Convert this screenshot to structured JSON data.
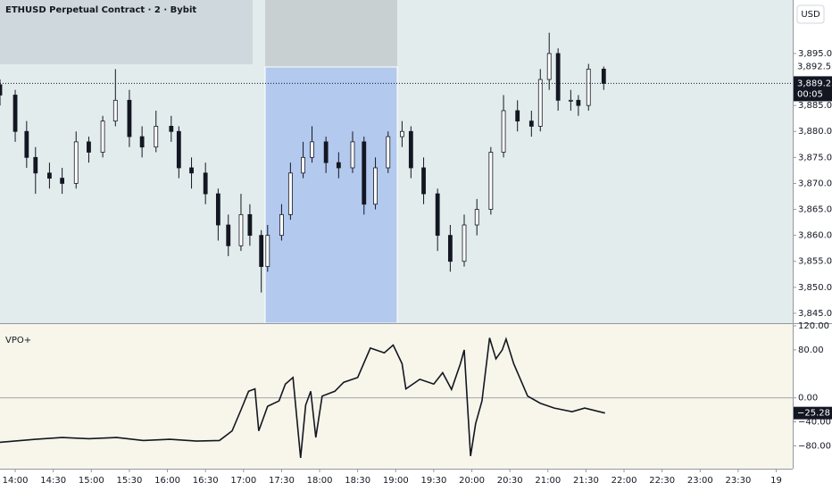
{
  "chart_data": [
    {
      "type": "candlestick",
      "title": "ETHUSD Perpetual Contract · 2 · Bybit",
      "currency": "USD",
      "color": "#131722",
      "x": [
        828,
        840,
        849,
        856,
        867,
        877,
        888,
        898,
        909,
        919,
        930,
        940,
        951,
        963,
        969,
        979,
        990,
        1000,
        1008,
        1018,
        1025,
        1034,
        1039,
        1050,
        1057,
        1067,
        1074,
        1085,
        1095,
        1106,
        1115,
        1124,
        1134,
        1145,
        1152,
        1162,
        1173,
        1183,
        1194,
        1204,
        1215,
        1225,
        1236,
        1247,
        1254,
        1261,
        1268,
        1278,
        1284,
        1292,
        1304
      ],
      "open": [
        3889,
        3887,
        3880,
        3875,
        3872,
        3871,
        3870,
        3878,
        3876,
        3882,
        3886,
        3879,
        3877,
        3881,
        3880,
        3873,
        3872,
        3868,
        3862,
        3858,
        3864,
        3860,
        3854,
        3860,
        3864,
        3872,
        3875,
        3878,
        3874,
        3873,
        3878,
        3866,
        3873,
        3879,
        3880,
        3873,
        3868,
        3860,
        3855,
        3862,
        3865,
        3876,
        3884,
        3882,
        3881,
        3890,
        3895,
        3886,
        3886,
        3885,
        3892
      ],
      "high": [
        3890,
        3888,
        3882,
        3877,
        3874,
        3873,
        3880,
        3879,
        3883,
        3892,
        3888,
        3881,
        3884,
        3883,
        3881,
        3875,
        3874,
        3869,
        3864,
        3868,
        3866,
        3861,
        3862,
        3866,
        3874,
        3878,
        3881,
        3879,
        3876,
        3880,
        3879,
        3875,
        3880,
        3882,
        3881,
        3875,
        3869,
        3862,
        3864,
        3867,
        3877,
        3887,
        3886,
        3884,
        3892,
        3899,
        3896,
        3888,
        3887,
        3893,
        3892.5
      ],
      "low": [
        3885,
        3878,
        3873,
        3868,
        3869,
        3868,
        3869,
        3874,
        3875,
        3881,
        3877,
        3875,
        3876,
        3878,
        3871,
        3869,
        3866,
        3859,
        3856,
        3857,
        3858,
        3849,
        3853,
        3859,
        3863,
        3871,
        3874,
        3872,
        3871,
        3872,
        3864,
        3865,
        3872,
        3877,
        3871,
        3866,
        3857,
        3853,
        3854,
        3860,
        3864,
        3875,
        3880,
        3879,
        3880,
        3888,
        3884,
        3884,
        3883,
        3884,
        3888
      ],
      "close": [
        3887,
        3880,
        3875,
        3872,
        3871,
        3870,
        3878,
        3876,
        3882,
        3886,
        3879,
        3877,
        3881,
        3880,
        3873,
        3872,
        3868,
        3862,
        3858,
        3864,
        3860,
        3854,
        3860,
        3864,
        3872,
        3875,
        3878,
        3874,
        3873,
        3878,
        3866,
        3873,
        3879,
        3880,
        3873,
        3868,
        3860,
        3855,
        3862,
        3865,
        3876,
        3884,
        3882,
        3881,
        3890,
        3895,
        3886,
        3886,
        3885,
        3892,
        3889.25
      ],
      "xlim": [
        828,
        1453
      ],
      "ylim": [
        3843.1,
        3905.3
      ],
      "yticks": [
        {
          "value": 3845,
          "label": "3,845.00"
        },
        {
          "value": 3850,
          "label": "3,850.00"
        },
        {
          "value": 3855,
          "label": "3,855.00"
        },
        {
          "value": 3860,
          "label": "3,860.00"
        },
        {
          "value": 3865,
          "label": "3,865.00"
        },
        {
          "value": 3870,
          "label": "3,870.00"
        },
        {
          "value": 3875,
          "label": "3,875.00"
        },
        {
          "value": 3880,
          "label": "3,880.00"
        },
        {
          "value": 3885,
          "label": "3,885.00"
        },
        {
          "value": 3895,
          "label": "3,895.00"
        }
      ],
      "level": {
        "value": 3892.53,
        "label": "3,892.53"
      },
      "last_price": {
        "value": 3889.25,
        "label": "3,889.25"
      },
      "countdown": "00:05"
    },
    {
      "type": "line",
      "title": "VPO+",
      "color": "#131722",
      "x": [
        828,
        856,
        877,
        898,
        920,
        941,
        962,
        983,
        1001,
        1011,
        1018,
        1024,
        1029,
        1032,
        1039,
        1048,
        1053,
        1059,
        1065,
        1069,
        1073,
        1077,
        1082,
        1092,
        1099,
        1110,
        1120,
        1131,
        1138,
        1145,
        1148,
        1159,
        1170,
        1177,
        1184,
        1191,
        1194,
        1199,
        1203,
        1208,
        1214,
        1219,
        1224,
        1227,
        1233,
        1244,
        1254,
        1265,
        1279,
        1289,
        1305
      ],
      "values": [
        -74,
        -69,
        -66,
        -68,
        -66,
        -71,
        -69,
        -72,
        -71,
        -55,
        -20,
        11,
        15,
        -55,
        -14,
        -5,
        23,
        34,
        -100,
        -12,
        11,
        -66,
        3,
        11,
        26,
        34,
        83,
        75,
        88,
        57,
        15,
        31,
        23,
        42,
        14,
        57,
        80,
        -97,
        -43,
        -5,
        100,
        65,
        80,
        98,
        57,
        3,
        -9,
        -17,
        -23,
        -17,
        -25.28
      ],
      "ylim": [
        -118,
        123
      ],
      "yticks": [
        {
          "value": 120,
          "label": "120.00"
        },
        {
          "value": 80,
          "label": "80.00"
        },
        {
          "value": 0,
          "label": "0.00"
        },
        {
          "value": -40,
          "label": "−40.00"
        },
        {
          "value": -80,
          "label": "−80.00"
        }
      ],
      "last_value": {
        "value": -25.28,
        "label": "−25.28"
      },
      "xticks": [
        {
          "value": 840,
          "label": "14:00"
        },
        {
          "value": 870,
          "label": "14:30"
        },
        {
          "value": 900,
          "label": "15:00"
        },
        {
          "value": 930,
          "label": "15:30"
        },
        {
          "value": 960,
          "label": "16:00"
        },
        {
          "value": 990,
          "label": "16:30"
        },
        {
          "value": 1020,
          "label": "17:00"
        },
        {
          "value": 1050,
          "label": "17:30"
        },
        {
          "value": 1080,
          "label": "18:00"
        },
        {
          "value": 1110,
          "label": "18:30"
        },
        {
          "value": 1140,
          "label": "19:00"
        },
        {
          "value": 1170,
          "label": "19:30"
        },
        {
          "value": 1200,
          "label": "20:00"
        },
        {
          "value": 1230,
          "label": "20:30"
        },
        {
          "value": 1260,
          "label": "21:00"
        },
        {
          "value": 1290,
          "label": "21:30"
        },
        {
          "value": 1320,
          "label": "22:00"
        },
        {
          "value": 1350,
          "label": "22:30"
        },
        {
          "value": 1380,
          "label": "23:00"
        },
        {
          "value": 1410,
          "label": "23:30"
        },
        {
          "value": 1440,
          "label": "19"
        }
      ]
    }
  ]
}
